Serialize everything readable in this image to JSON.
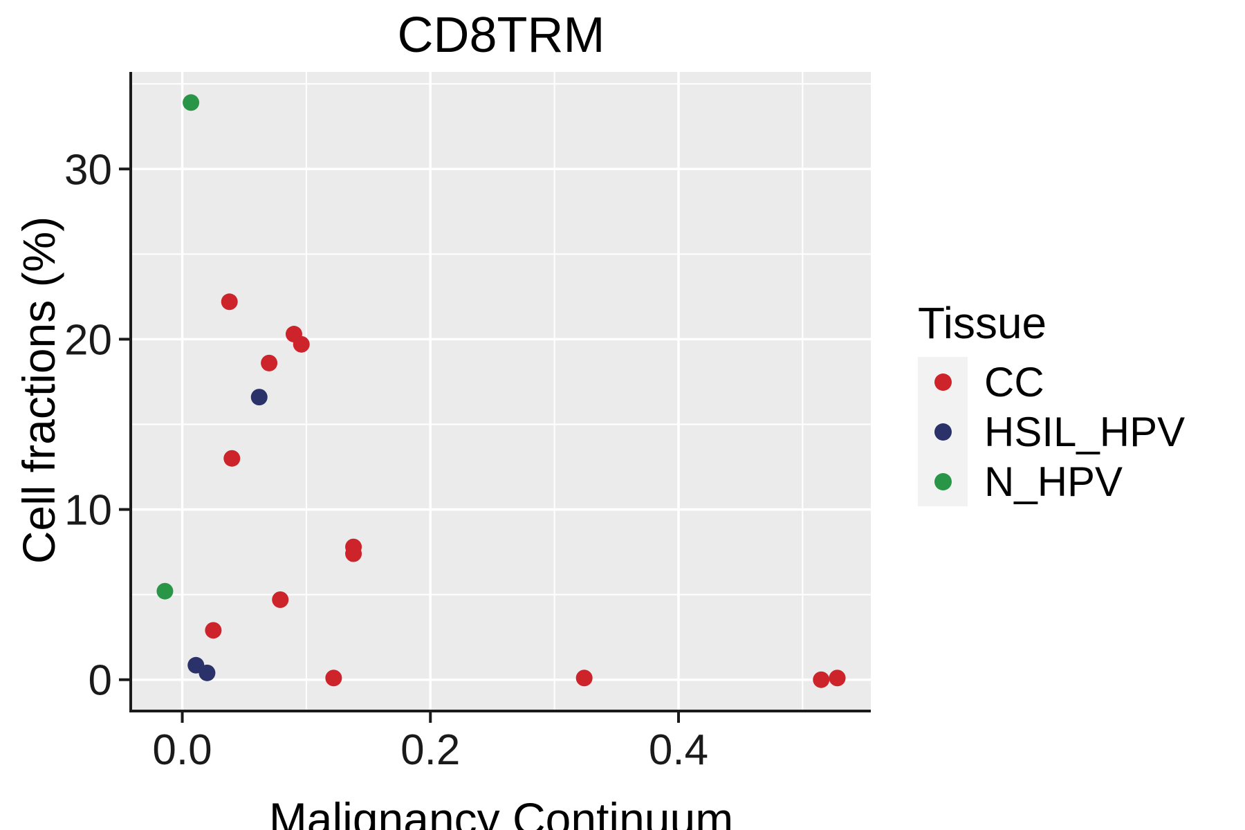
{
  "chart_data": {
    "type": "scatter",
    "title": "CD8TRM",
    "xlabel": "Malignancy Continuum",
    "ylabel": "Cell fractions (%)",
    "legend_title": "Tissue",
    "legend_position": "right",
    "grid": true,
    "panel_bg": "#EBEBEB",
    "grid_color": "#FFFFFF",
    "axis_color": "#1a1a1a",
    "xlim": [
      -0.041,
      0.555
    ],
    "ylim": [
      -1.8,
      35.7
    ],
    "x_major_ticks": [
      0.0,
      0.2,
      0.4
    ],
    "x_tick_labels": [
      "0.0",
      "0.2",
      "0.4"
    ],
    "x_minor_ticks": [
      0.1,
      0.3,
      0.5
    ],
    "y_major_ticks": [
      0,
      10,
      20,
      30
    ],
    "y_tick_labels": [
      "0",
      "10",
      "20",
      "30"
    ],
    "y_minor_ticks": [
      5,
      15,
      25,
      35
    ],
    "series": [
      {
        "name": "CC",
        "color": "#CD232A",
        "points": [
          [
            0.038,
            22.2
          ],
          [
            0.09,
            20.3
          ],
          [
            0.096,
            19.7
          ],
          [
            0.07,
            18.6
          ],
          [
            0.04,
            13.0
          ],
          [
            0.138,
            7.8
          ],
          [
            0.138,
            7.4
          ],
          [
            0.079,
            4.7
          ],
          [
            0.025,
            2.9
          ],
          [
            0.122,
            0.1
          ],
          [
            0.324,
            0.1
          ],
          [
            0.515,
            0.0
          ],
          [
            0.528,
            0.1
          ]
        ]
      },
      {
        "name": "HSIL_HPV",
        "color": "#2B3169",
        "points": [
          [
            0.011,
            0.85
          ],
          [
            0.02,
            0.4
          ],
          [
            0.062,
            16.6
          ]
        ]
      },
      {
        "name": "N_HPV",
        "color": "#289646",
        "points": [
          [
            0.007,
            33.9
          ],
          [
            -0.014,
            5.2
          ]
        ]
      }
    ]
  }
}
